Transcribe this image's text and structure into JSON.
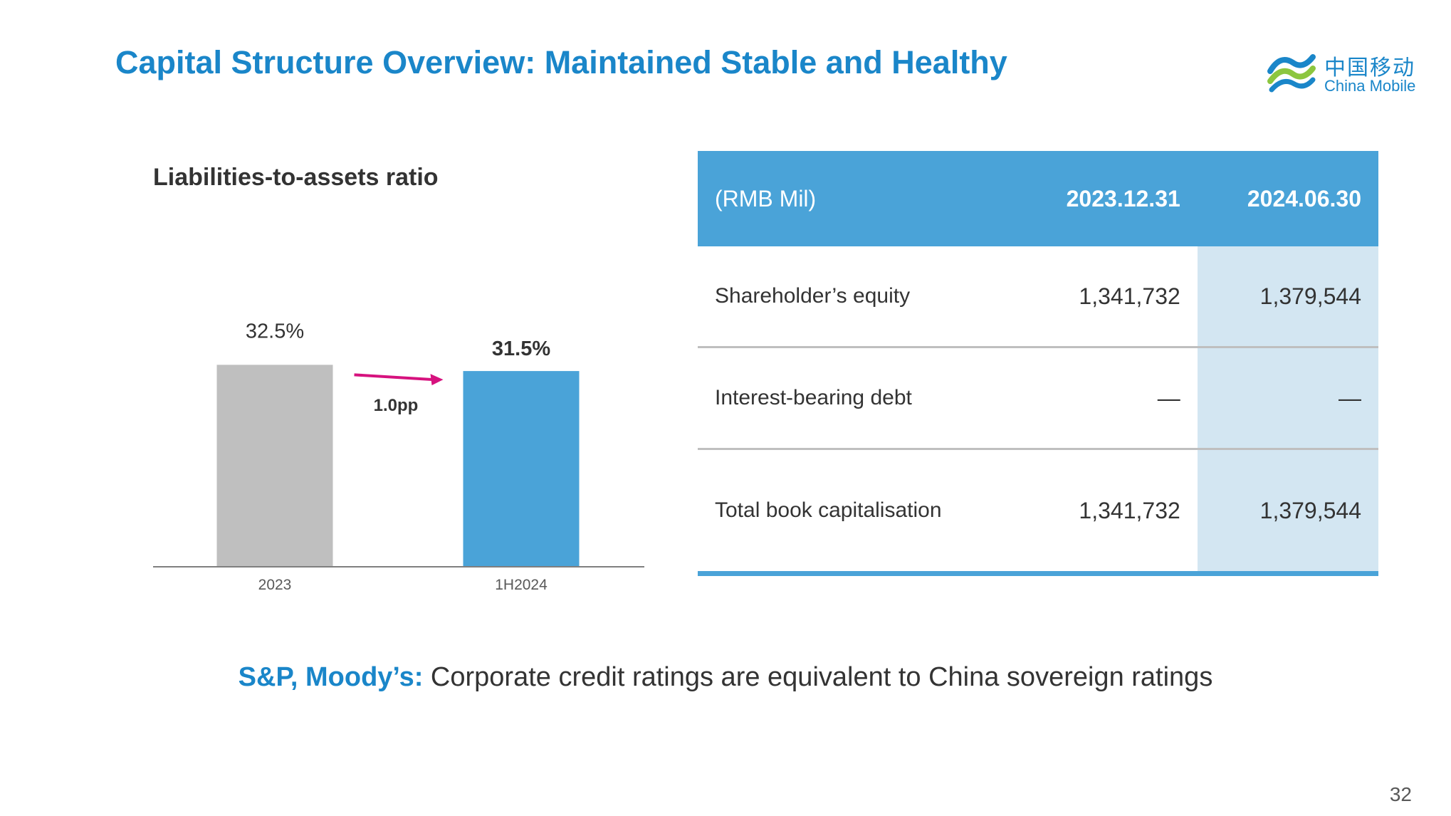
{
  "title": "Capital Structure Overview: Maintained Stable and Healthy",
  "logo": {
    "cn": "中国移动",
    "en": "China Mobile",
    "color": "#1a86c9"
  },
  "chart_title": "Liabilities-to-assets ratio",
  "chart_data": {
    "type": "bar",
    "title": "Liabilities-to-assets ratio",
    "categories": [
      "2023",
      "1H2024"
    ],
    "values": [
      32.5,
      31.5
    ],
    "labels": [
      "32.5%",
      "31.5%"
    ],
    "colors": [
      "#bfbfbf",
      "#4aa3d8"
    ],
    "annotation": "1.0pp",
    "annotation_color": "#d6127e",
    "ylim": [
      0,
      33
    ]
  },
  "table": {
    "header": {
      "unit": "(RMB Mil)",
      "col1": "2023.12.31",
      "col2": "2024.06.30"
    },
    "rows": [
      {
        "label": "Shareholder’s equity",
        "v1": "1,341,732",
        "v2": "1,379,544"
      },
      {
        "label": "Interest-bearing debt",
        "v1": "—",
        "v2": "—"
      },
      {
        "label": "Total book capitalisation",
        "v1": "1,341,732",
        "v2": "1,379,544"
      }
    ]
  },
  "footnote": {
    "bold": "S&P, Moody’s:",
    "text": " Corporate credit ratings are equivalent to China sovereign ratings"
  },
  "page_number": "32"
}
